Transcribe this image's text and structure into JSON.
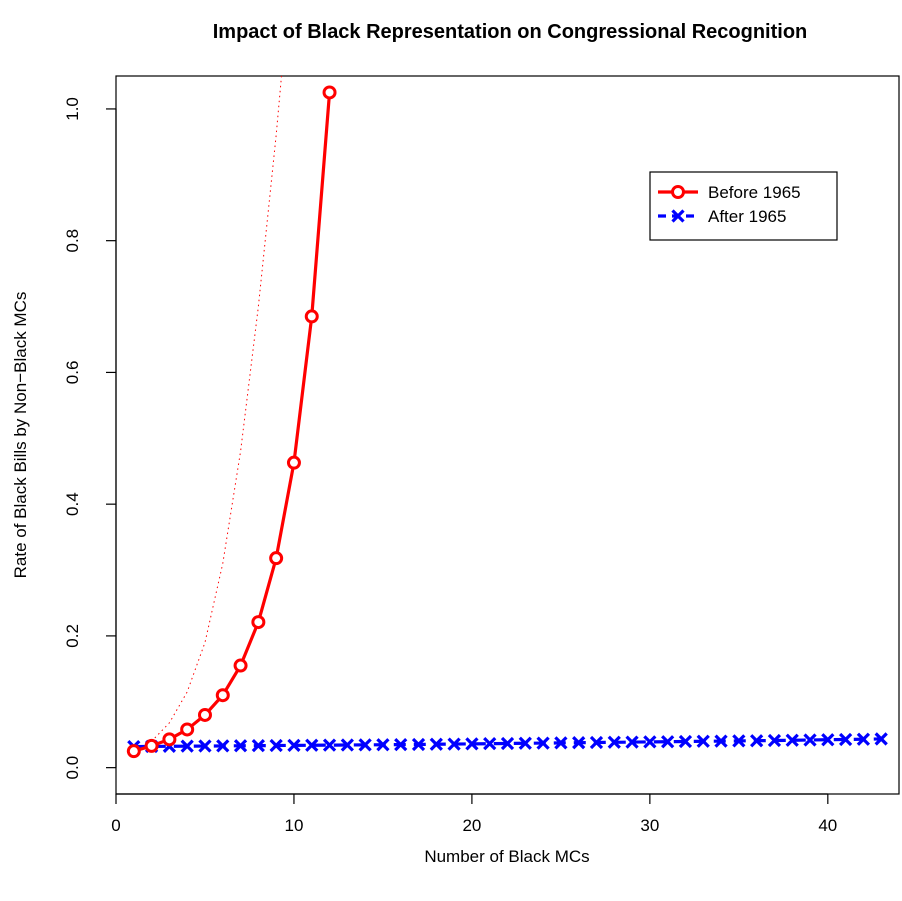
{
  "chart_data": {
    "type": "line",
    "title": "Impact of Black Representation on Congressional Recognition",
    "xlabel": "Number of Black MCs",
    "ylabel": "Rate of Black Bills by Non−Black MCs",
    "xlim": [
      0,
      44
    ],
    "ylim": [
      -0.04,
      1.05
    ],
    "x_ticks": [
      0,
      10,
      20,
      30,
      40
    ],
    "x_tick_labels": [
      "0",
      "10",
      "20",
      "30",
      "40"
    ],
    "y_ticks": [
      0.0,
      0.2,
      0.4,
      0.6,
      0.8,
      1.0
    ],
    "y_tick_labels": [
      "0.0",
      "0.2",
      "0.4",
      "0.6",
      "0.8",
      "1.0"
    ],
    "grid": false,
    "legend_position": "top-right",
    "series": [
      {
        "name": "Before 1965",
        "color": "#ff0000",
        "marker": "circle",
        "line_style": "solid",
        "x": [
          1,
          2,
          3,
          4,
          5,
          6,
          7,
          8,
          9,
          10,
          11,
          12
        ],
        "y": [
          0.025,
          0.033,
          0.043,
          0.058,
          0.08,
          0.11,
          0.155,
          0.221,
          0.318,
          0.463,
          0.685,
          1.025
        ]
      },
      {
        "name": "After 1965",
        "color": "#0000ff",
        "marker": "x",
        "line_style": "dashed",
        "x": [
          1,
          2,
          3,
          4,
          5,
          6,
          7,
          8,
          9,
          10,
          11,
          12,
          13,
          14,
          15,
          16,
          17,
          18,
          19,
          20,
          21,
          22,
          23,
          24,
          25,
          26,
          27,
          28,
          29,
          30,
          31,
          32,
          33,
          34,
          35,
          36,
          37,
          38,
          39,
          40,
          41,
          42,
          43
        ],
        "y": [
          0.032,
          0.0322,
          0.0324,
          0.0326,
          0.0328,
          0.033,
          0.0332,
          0.0334,
          0.0336,
          0.0338,
          0.034,
          0.0342,
          0.0344,
          0.0346,
          0.0348,
          0.035,
          0.0352,
          0.0355,
          0.0358,
          0.0361,
          0.0364,
          0.0367,
          0.037,
          0.0373,
          0.0376,
          0.0379,
          0.0382,
          0.0385,
          0.0388,
          0.0391,
          0.0394,
          0.0397,
          0.04,
          0.0403,
          0.0406,
          0.0409,
          0.0412,
          0.0416,
          0.042,
          0.0424,
          0.0428,
          0.0432,
          0.0436
        ]
      },
      {
        "name": "",
        "color": "#ff0000",
        "marker": "none",
        "line_style": "dotted",
        "x": [
          1,
          2,
          3,
          4,
          5,
          6,
          7,
          8,
          9,
          9.3
        ],
        "y": [
          0.025,
          0.04,
          0.068,
          0.115,
          0.19,
          0.31,
          0.48,
          0.7,
          0.96,
          1.05
        ]
      }
    ]
  }
}
